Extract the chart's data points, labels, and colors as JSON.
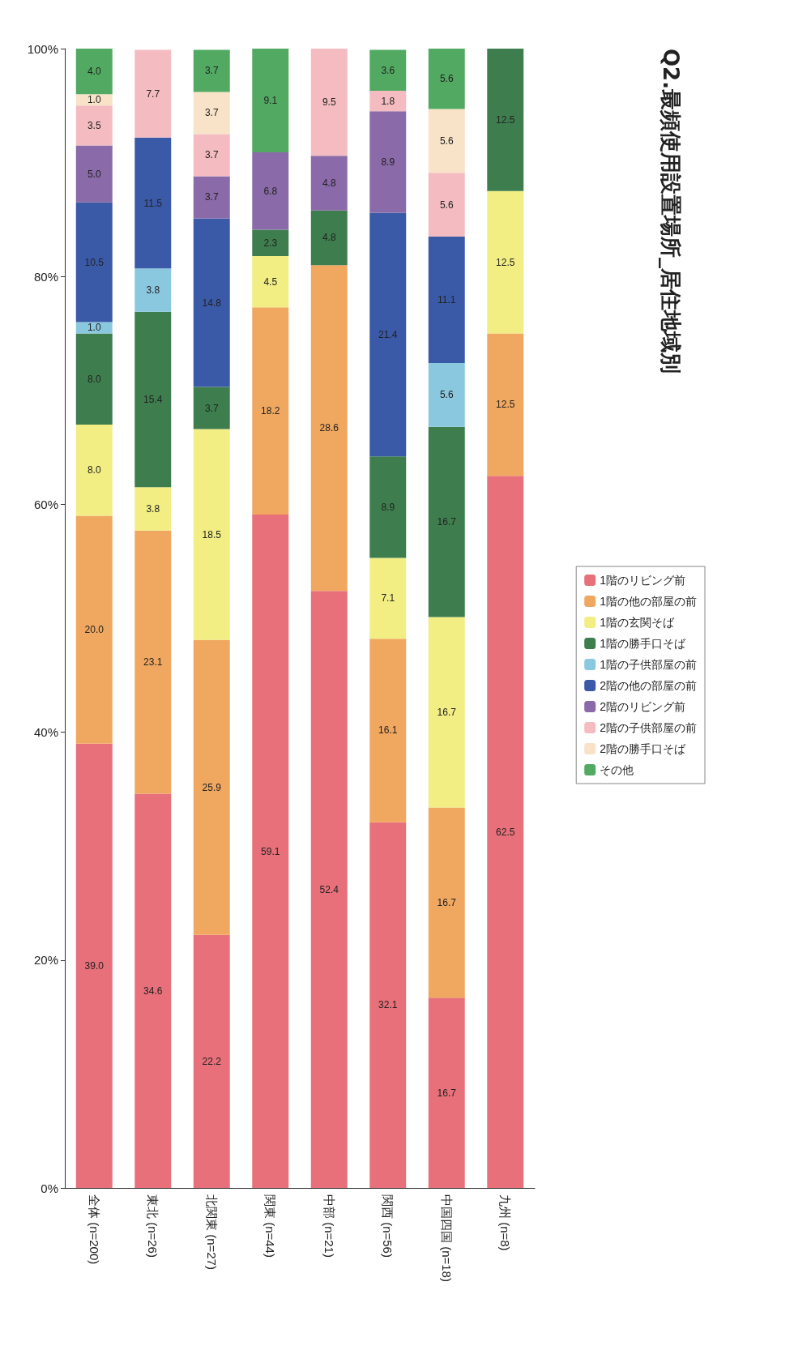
{
  "chart_data": {
    "type": "bar",
    "title": "Q2.最頻使用設置場所_居住地域別",
    "stacked": true,
    "legend": "right",
    "grid": false,
    "categories": [
      "全体 (n=200)",
      "東北 (n=26)",
      "北関東 (n=27)",
      "関東 (n=44)",
      "中部 (n=21)",
      "関西 (n=56)",
      "中国四国 (n=18)",
      "九州 (n=8)"
    ],
    "ylim": [
      0,
      100
    ],
    "yticks": [
      {
        "value": 0,
        "label": "0%"
      },
      {
        "value": 20,
        "label": "20%"
      },
      {
        "value": 40,
        "label": "40%"
      },
      {
        "value": 60,
        "label": "60%"
      },
      {
        "value": 80,
        "label": "80%"
      },
      {
        "value": 100,
        "label": "100%"
      }
    ],
    "series": [
      {
        "name": "1階のリビング前",
        "color": "#e8707a",
        "values": [
          39.0,
          34.6,
          22.2,
          59.1,
          52.4,
          32.1,
          16.7,
          62.5
        ],
        "value_labels": [
          "39.0",
          "34.6",
          "22.2",
          "59.1",
          "52.4",
          "32.1",
          "16.7",
          "62.5"
        ]
      },
      {
        "name": "1階の他の部屋の前",
        "color": "#f0a860",
        "values": [
          20.0,
          23.1,
          25.9,
          18.2,
          28.6,
          16.1,
          16.7,
          12.5
        ],
        "value_labels": [
          "20.0",
          "23.1",
          "25.9",
          "18.2",
          "28.6",
          "16.1",
          "16.7",
          "12.5"
        ]
      },
      {
        "name": "1階の玄関そば",
        "color": "#f2ee84",
        "values": [
          8.0,
          3.8,
          18.5,
          4.5,
          null,
          7.1,
          16.7,
          12.5
        ],
        "value_labels": [
          "8.0",
          "3.8",
          "18.5",
          "4.5",
          null,
          "7.1",
          "16.7",
          "12.5"
        ]
      },
      {
        "name": "1階の勝手口そば",
        "color": "#3e7e4e",
        "values": [
          8.0,
          15.4,
          3.7,
          2.3,
          4.8,
          8.9,
          16.7,
          12.5
        ],
        "value_labels": [
          "8.0",
          "15.4",
          "3.7",
          "2.3",
          "4.8",
          "8.9",
          "16.7",
          "12.5"
        ]
      },
      {
        "name": "1階の子供部屋の前",
        "color": "#8ac8e0",
        "values": [
          1.0,
          3.8,
          null,
          null,
          null,
          null,
          5.6,
          null
        ],
        "value_labels": [
          "1.0",
          "3.8",
          null,
          null,
          null,
          null,
          "5.6",
          null
        ]
      },
      {
        "name": "2階の他の部屋の前",
        "color": "#3a5aa8",
        "values": [
          10.5,
          11.5,
          14.8,
          null,
          null,
          21.4,
          11.1,
          null
        ],
        "value_labels": [
          "10.5",
          "11.5",
          "14.8",
          null,
          null,
          "21.4",
          "11.1",
          null
        ]
      },
      {
        "name": "2階のリビング前",
        "color": "#8a6aa8",
        "values": [
          5.0,
          null,
          3.7,
          6.8,
          4.8,
          8.9,
          null,
          null
        ],
        "value_labels": [
          "5.0",
          null,
          "3.7",
          "6.8",
          "4.8",
          "8.9",
          null,
          null
        ]
      },
      {
        "name": "2階の子供部屋の前",
        "color": "#f4bcc0",
        "values": [
          3.5,
          7.7,
          3.7,
          null,
          9.5,
          1.8,
          5.6,
          null
        ],
        "value_labels": [
          "3.5",
          "7.7",
          "3.7",
          null,
          "9.5",
          "1.8",
          "5.6",
          null
        ]
      },
      {
        "name": "2階の勝手口そば",
        "color": "#f8e2c8",
        "values": [
          1.0,
          null,
          3.7,
          null,
          null,
          null,
          5.6,
          null
        ],
        "value_labels": [
          "1.0",
          null,
          "3.7",
          null,
          null,
          null,
          "5.6",
          null
        ]
      },
      {
        "name": "その他",
        "color": "#52aa62",
        "values": [
          4.0,
          null,
          3.7,
          9.1,
          null,
          3.6,
          5.6,
          null
        ],
        "value_labels": [
          "4.0",
          null,
          "3.7",
          "9.1",
          null,
          "3.6",
          "5.6",
          null
        ]
      }
    ]
  }
}
